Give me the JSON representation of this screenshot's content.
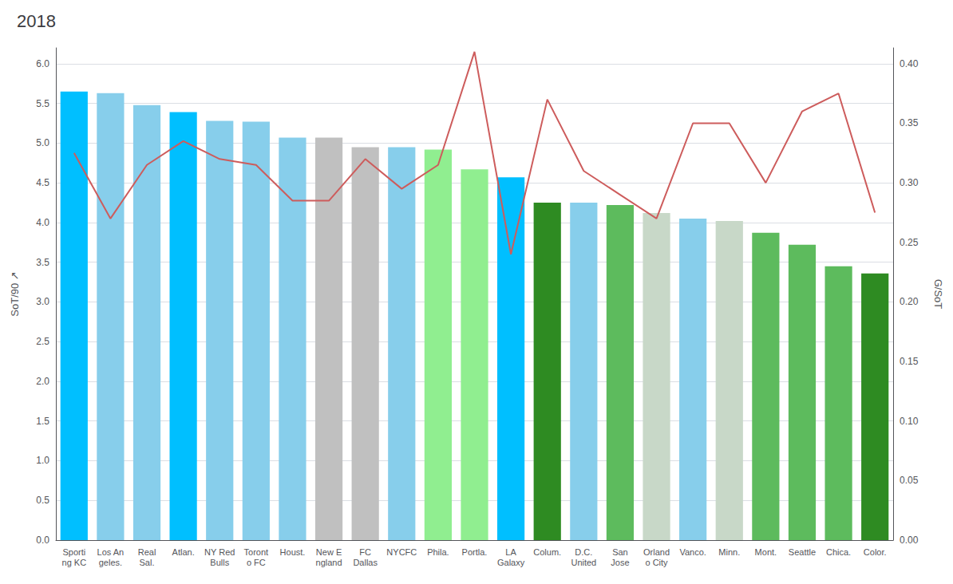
{
  "chart_data": {
    "type": "bar",
    "title": "2018",
    "ylabel": "SoT/90 ↗",
    "y2label": "G/SoT",
    "categories": [
      "Sporti\nng KC",
      "Los An\ngeles.",
      "Real\nSal.",
      "Atlan.",
      "NY Red\nBulls",
      "Toront\no FC",
      "Houst.",
      "New E\nngland",
      "FC\nDallas",
      "NYCFC",
      "Phila.",
      "Portla.",
      "LA\nGalaxy",
      "Colum.",
      "D.C.\nUnited",
      "San\nJose",
      "Orland\no City",
      "Vanco.",
      "Minn.",
      "Mont.",
      "Seattle",
      "Chica.",
      "Color."
    ],
    "series": [
      {
        "type": "bar",
        "colors": [
          "#00BFFF",
          "#87CEEB",
          "#87CEEB",
          "#00BFFF",
          "#87CEEB",
          "#87CEEB",
          "#87CEEB",
          "#C0C0C0",
          "#C0C0C0",
          "#87CEEB",
          "#90EE90",
          "#90EE90",
          "#00BFFF",
          "#2E8B22",
          "#87CEEB",
          "#5DBB5D",
          "#C8D8C8",
          "#87CEEB",
          "#C8D8C8",
          "#5DBB5D",
          "#5DBB5D",
          "#5DBB5D",
          "#2E8B22"
        ],
        "values": [
          5.65,
          5.63,
          5.48,
          5.39,
          5.28,
          5.27,
          5.07,
          5.07,
          4.95,
          4.95,
          4.92,
          4.67,
          4.57,
          4.25,
          4.25,
          4.22,
          4.12,
          4.05,
          4.02,
          3.87,
          3.72,
          3.45,
          3.36
        ]
      },
      {
        "type": "line",
        "axis": "y2",
        "color": "#CD5C5C",
        "values": [
          0.325,
          0.27,
          0.315,
          0.335,
          0.32,
          0.315,
          0.285,
          0.285,
          0.32,
          0.295,
          0.315,
          0.41,
          0.24,
          0.37,
          0.31,
          0.29,
          0.27,
          0.35,
          0.35,
          0.3,
          0.36,
          0.375,
          0.275
        ]
      }
    ],
    "ylim": [
      0,
      6.2
    ],
    "yticks": [
      {
        "value": 0,
        "label": "0.0"
      },
      0.5,
      {
        "value": 1,
        "label": "1.0"
      },
      1.5,
      {
        "value": 2,
        "label": "2.0"
      },
      2.5,
      {
        "value": 3,
        "label": "3.0"
      },
      3.5,
      {
        "value": 4,
        "label": "4.0"
      },
      4.5,
      {
        "value": 5,
        "label": "5.0"
      },
      5.5,
      {
        "value": 6,
        "label": "6.0"
      }
    ],
    "y2lim": [
      0,
      0.4133
    ],
    "y2ticks": [
      {
        "value": 0,
        "label": "0.00"
      },
      0.05,
      {
        "value": 0.1,
        "label": "0.10"
      },
      0.15,
      {
        "value": 0.2,
        "label": "0.20"
      },
      0.25,
      {
        "value": 0.3,
        "label": "0.30"
      },
      0.35,
      {
        "value": 0.4,
        "label": "0.40"
      }
    ],
    "grid": true
  }
}
